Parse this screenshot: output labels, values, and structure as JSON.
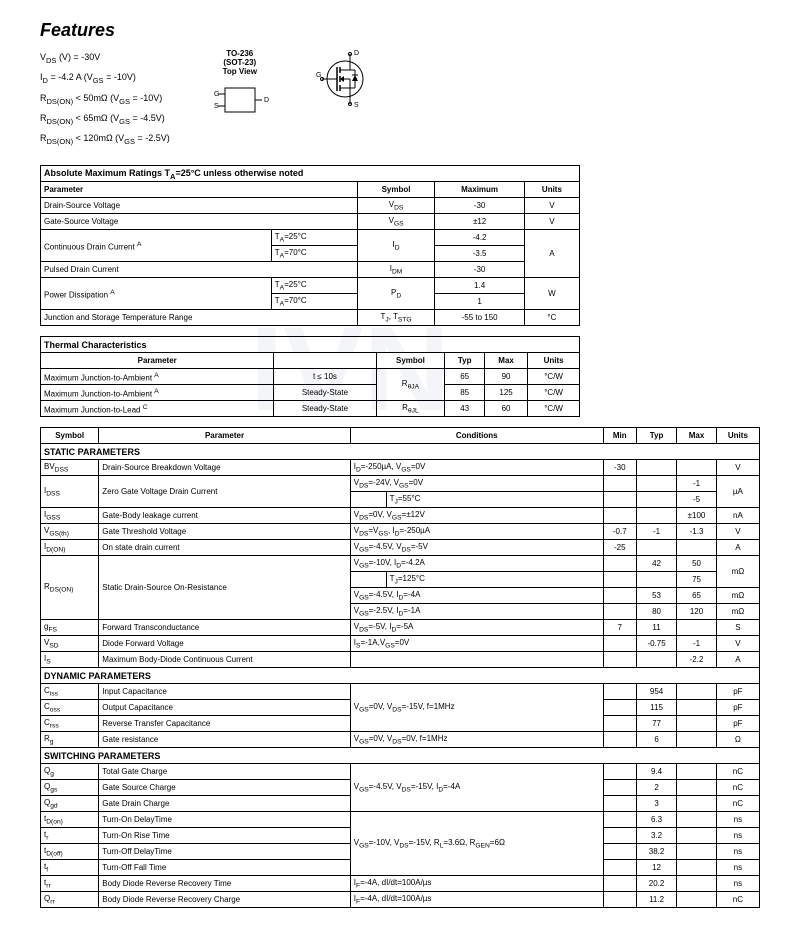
{
  "title": "Features",
  "feature_lines": [
    "V<sub>DS</sub> (V) = -30V",
    "I<sub>D</sub> = -4.2 A (V<sub>GS</sub> = -10V)",
    "R<sub>DS(ON)</sub> < 50mΩ (V<sub>GS</sub> = -10V)",
    "R<sub>DS(ON)</sub> < 65mΩ (V<sub>GS</sub> = -4.5V)",
    "R<sub>DS(ON)</sub> < 120mΩ (V<sub>GS</sub> = -2.5V)"
  ],
  "package": {
    "line1": "TO-236",
    "line2": "(SOT-23)",
    "line3": "Top View"
  },
  "abs_max": {
    "title": "Absolute Maximum Ratings  T<sub>A</sub>=25°C unless otherwise noted",
    "headers": [
      "Parameter",
      "Symbol",
      "Maximum",
      "Units"
    ],
    "rows": [
      {
        "param": "Drain-Source Voltage",
        "symbol": "V<sub>DS</sub>",
        "max": "-30",
        "units": "V"
      },
      {
        "param": "Gate-Source Voltage",
        "symbol": "V<sub>GS</sub>",
        "max": "±12",
        "units": "V"
      }
    ],
    "drain_current": {
      "param": "Continuous Drain Current <sup>A</sup>",
      "symbol": "I<sub>D</sub>",
      "cond1": "T<sub>A</sub>=25°C",
      "val1": "-4.2",
      "cond2": "T<sub>A</sub>=70°C",
      "val2": "-3.5",
      "units": "A"
    },
    "pulsed": {
      "param": "Pulsed Drain Current",
      "symbol": "I<sub>DM</sub>",
      "max": "-30"
    },
    "power": {
      "param": "Power Dissipation <sup>A</sup>",
      "symbol": "P<sub>D</sub>",
      "cond1": "T<sub>A</sub>=25°C",
      "val1": "1.4",
      "cond2": "T<sub>A</sub>=70°C",
      "val2": "1",
      "units": "W"
    },
    "junction": {
      "param": "Junction and Storage Temperature Range",
      "symbol": "T<sub>J</sub>, T<sub>STG</sub>",
      "max": "-55 to 150",
      "units": "°C"
    }
  },
  "thermal": {
    "title": "Thermal Characteristics",
    "headers": [
      "Parameter",
      "",
      "Symbol",
      "Typ",
      "Max",
      "Units"
    ],
    "rows": [
      {
        "param": "Maximum Junction-to-Ambient <sup>A</sup>",
        "cond": "t ≤ 10s",
        "symbol": "R<sub>θJA</sub>",
        "typ": "65",
        "max": "90",
        "units": "°C/W"
      },
      {
        "param": "Maximum Junction-to-Ambient <sup>A</sup>",
        "cond": "Steady-State",
        "symbol": "",
        "typ": "85",
        "max": "125",
        "units": "°C/W"
      },
      {
        "param": "Maximum Junction-to-Lead <sup>C</sup>",
        "cond": "Steady-State",
        "symbol": "R<sub>θJL</sub>",
        "typ": "43",
        "max": "60",
        "units": "°C/W"
      }
    ]
  },
  "params": {
    "headers": [
      "Symbol",
      "Parameter",
      "Conditions",
      "Min",
      "Typ",
      "Max",
      "Units"
    ],
    "static_title": "STATIC PARAMETERS",
    "dynamic_title": "DYNAMIC PARAMETERS",
    "switching_title": "SWITCHING PARAMETERS",
    "static": [
      {
        "sym": "BV<sub>DSS</sub>",
        "param": "Drain-Source Breakdown Voltage",
        "cond": "I<sub>D</sub>=-250µA, V<sub>GS</sub>=0V",
        "min": "-30",
        "typ": "",
        "max": "",
        "units": "V"
      },
      {
        "sym": "I<sub>DSS</sub>",
        "param": "Zero Gate Voltage Drain Current",
        "cond": "V<sub>DS</sub>=-24V, V<sub>GS</sub>=0V",
        "cond2": "T<sub>J</sub>=55°C",
        "min": "",
        "typ": "",
        "max": "-1",
        "max2": "-5",
        "units": "µA",
        "rowspan": 2
      },
      {
        "sym": "I<sub>GSS</sub>",
        "param": "Gate-Body leakage current",
        "cond": "V<sub>DS</sub>=0V, V<sub>GS</sub>=±12V",
        "min": "",
        "typ": "",
        "max": "±100",
        "units": "nA"
      },
      {
        "sym": "V<sub>GS(th)</sub>",
        "param": "Gate Threshold Voltage",
        "cond": "V<sub>DS</sub>=V<sub>GS</sub>, I<sub>D</sub>=-250µA",
        "min": "-0.7",
        "typ": "-1",
        "max": "-1.3",
        "units": "V"
      },
      {
        "sym": "I<sub>D(ON)</sub>",
        "param": "On state drain current",
        "cond": "V<sub>GS</sub>=-4.5V, V<sub>DS</sub>=-5V",
        "min": "-25",
        "typ": "",
        "max": "",
        "units": "A"
      }
    ],
    "rdson": {
      "sym": "R<sub>DS(ON)</sub>",
      "param": "Static Drain-Source On-Resistance",
      "rows": [
        {
          "cond": "V<sub>GS</sub>=-10V, I<sub>D</sub>=-4.2A",
          "typ": "42",
          "max": "50",
          "units": "mΩ"
        },
        {
          "cond": "",
          "cond2": "T<sub>J</sub>=125°C",
          "typ": "",
          "max": "75",
          "units": ""
        },
        {
          "cond": "V<sub>GS</sub>=-4.5V, I<sub>D</sub>=-4A",
          "typ": "53",
          "max": "65",
          "units": "mΩ"
        },
        {
          "cond": "V<sub>GS</sub>=-2.5V, I<sub>D</sub>=-1A",
          "typ": "80",
          "max": "120",
          "units": "mΩ"
        }
      ]
    },
    "static2": [
      {
        "sym": "g<sub>FS</sub>",
        "param": "Forward Transconductance",
        "cond": "V<sub>DS</sub>=-5V, I<sub>D</sub>=-5A",
        "min": "7",
        "typ": "11",
        "max": "",
        "units": "S"
      },
      {
        "sym": "V<sub>SD</sub>",
        "param": "Diode Forward Voltage",
        "cond": "I<sub>S</sub>=-1A,V<sub>GS</sub>=0V",
        "min": "",
        "typ": "-0.75",
        "max": "-1",
        "units": "V"
      },
      {
        "sym": "I<sub>S</sub>",
        "param": "Maximum Body-Diode Continuous Current",
        "cond": "",
        "min": "",
        "typ": "",
        "max": "-2.2",
        "units": "A"
      }
    ],
    "dynamic": [
      {
        "sym": "C<sub>iss</sub>",
        "param": "Input Capacitance",
        "cond": "V<sub>GS</sub>=0V, V<sub>DS</sub>=-15V, f=1MHz",
        "typ": "954",
        "units": "pF",
        "condspan": 3
      },
      {
        "sym": "C<sub>oss</sub>",
        "param": "Output Capacitance",
        "typ": "115",
        "units": "pF"
      },
      {
        "sym": "C<sub>rss</sub>",
        "param": "Reverse Transfer Capacitance",
        "typ": "77",
        "units": "pF"
      },
      {
        "sym": "R<sub>g</sub>",
        "param": "Gate resistance",
        "cond": "V<sub>GS</sub>=0V, V<sub>DS</sub>=0V, f=1MHz",
        "typ": "6",
        "units": "Ω"
      }
    ],
    "switching": [
      {
        "sym": "Q<sub>g</sub>",
        "param": "Total Gate Charge",
        "cond": "V<sub>GS</sub>=-4.5V, V<sub>DS</sub>=-15V, I<sub>D</sub>=-4A",
        "typ": "9.4",
        "units": "nC",
        "condspan": 3
      },
      {
        "sym": "Q<sub>gs</sub>",
        "param": "Gate Source Charge",
        "typ": "2",
        "units": "nC"
      },
      {
        "sym": "Q<sub>gd</sub>",
        "param": "Gate Drain Charge",
        "typ": "3",
        "units": "nC"
      },
      {
        "sym": "t<sub>D(on)</sub>",
        "param": "Turn-On DelayTime",
        "cond": "V<sub>GS</sub>=-10V, V<sub>DS</sub>=-15V, R<sub>L</sub>=3.6Ω, R<sub>GEN</sub>=6Ω",
        "typ": "6.3",
        "units": "ns",
        "condspan": 4
      },
      {
        "sym": "t<sub>r</sub>",
        "param": "Turn-On Rise Time",
        "typ": "3.2",
        "units": "ns"
      },
      {
        "sym": "t<sub>D(off)</sub>",
        "param": "Turn-Off DelayTime",
        "typ": "38.2",
        "units": "ns"
      },
      {
        "sym": "t<sub>f</sub>",
        "param": "Turn-Off Fall Time",
        "typ": "12",
        "units": "ns"
      },
      {
        "sym": "t<sub>rr</sub>",
        "param": "Body Diode Reverse Recovery Time",
        "cond": "I<sub>F</sub>=-4A, dI/dt=100A/µs",
        "typ": "20.2",
        "units": "ns"
      },
      {
        "sym": "Q<sub>rr</sub>",
        "param": "Body Diode Reverse Recovery Charge",
        "cond": "I<sub>F</sub>=-4A, dI/dt=100A/µs",
        "typ": "11.2",
        "units": "nC"
      }
    ]
  }
}
